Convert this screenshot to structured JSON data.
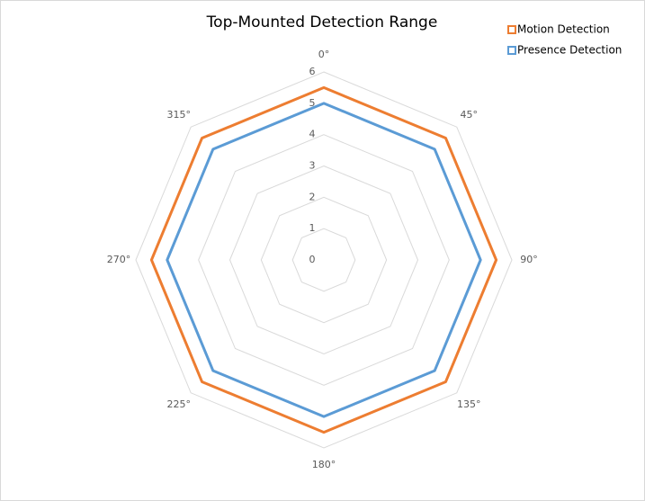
{
  "chart_data": {
    "type": "radar",
    "title": "Top-Mounted Detection Range",
    "categories": [
      "0°",
      "45°",
      "90°",
      "135°",
      "180°",
      "225°",
      "270°",
      "315°"
    ],
    "series": [
      {
        "name": "Motion Detection",
        "color": "#ed7d31",
        "values": [
          5.5,
          5.5,
          5.5,
          5.5,
          5.5,
          5.5,
          5.5,
          5.5
        ]
      },
      {
        "name": "Presence Detection",
        "color": "#5b9bd5",
        "values": [
          5,
          5,
          5,
          5,
          5,
          5,
          5,
          5
        ]
      }
    ],
    "rlim": [
      0,
      6
    ],
    "rticks": [
      0,
      1,
      2,
      3,
      4,
      5,
      6
    ],
    "grid": true,
    "legend": "top-right"
  }
}
